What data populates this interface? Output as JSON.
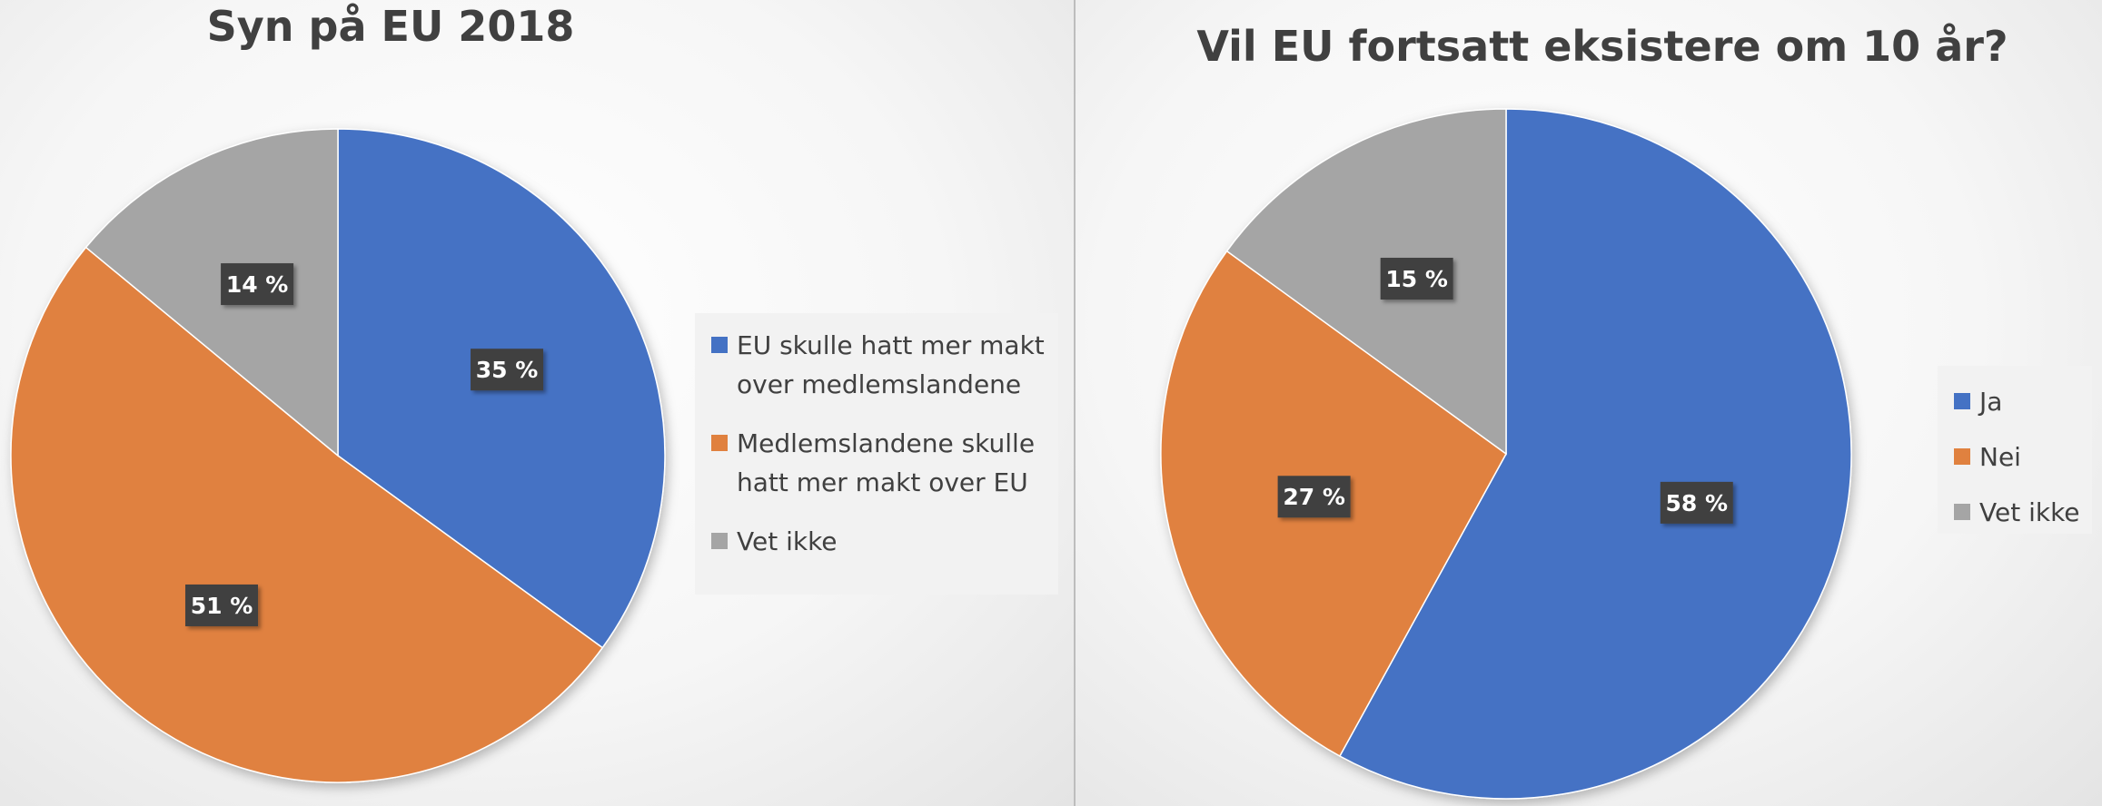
{
  "chart_data": [
    {
      "type": "pie",
      "title": "Syn på EU 2018",
      "categories": [
        "EU skulle hatt mer makt over medlemslandene",
        "Medlemslandene skulle hatt mer makt over EU",
        "Vet ikke"
      ],
      "values": [
        35,
        51,
        14
      ],
      "data_labels": [
        "35 %",
        "51 %",
        "14 %"
      ],
      "colors": [
        "#4472C4",
        "#E0813F",
        "#A5A5A5"
      ],
      "legend_position": "right"
    },
    {
      "type": "pie",
      "title": "Vil EU fortsatt eksistere om 10 år?",
      "categories": [
        "Ja",
        "Nei",
        "Vet ikke"
      ],
      "values": [
        58,
        27,
        15
      ],
      "data_labels": [
        "58 %",
        "27 %",
        "15 %"
      ],
      "colors": [
        "#4472C4",
        "#E0813F",
        "#A5A5A5"
      ],
      "legend_position": "right"
    }
  ]
}
